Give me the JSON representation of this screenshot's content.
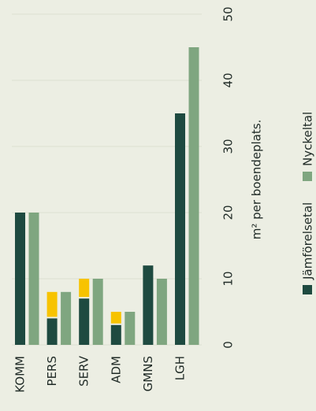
{
  "chart_data": {
    "type": "bar",
    "y_label": "m² per boendeplats.",
    "categories": [
      "KOMM",
      "PERS",
      "SERV",
      "ADM",
      "GMNS",
      "LGH"
    ],
    "series": [
      {
        "name": "Jämförelsetal",
        "color": "#1e4a40",
        "values": [
          20,
          4,
          7,
          3,
          12,
          35
        ]
      },
      {
        "color": "#f7c300",
        "stack_on": 0,
        "values": [
          0,
          4,
          3,
          2,
          0,
          0
        ]
      },
      {
        "name": "Nyckeltal",
        "color": "#7fa680",
        "values": [
          20,
          8,
          10,
          5,
          10,
          45
        ]
      }
    ],
    "ylim": [
      0,
      50
    ],
    "yticks": [
      0,
      10,
      20,
      30,
      40,
      50
    ],
    "grid": true
  }
}
